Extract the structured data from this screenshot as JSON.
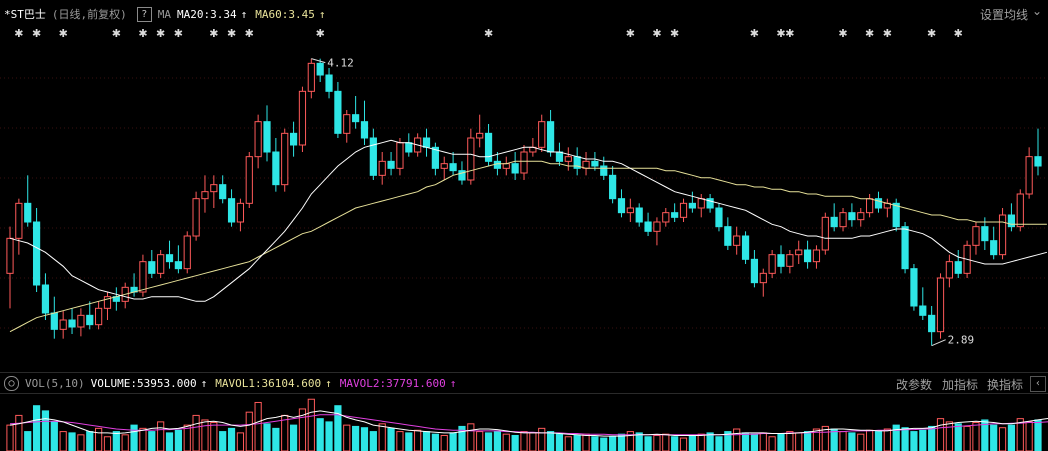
{
  "header": {
    "stock_name": "*ST巴士",
    "period": "(日线,前复权)",
    "help_label": "?",
    "ma_label": "MA",
    "ma20": "MA20:3.34",
    "ma60": "MA60:3.45",
    "arrow": "↑",
    "settings": "设置均线",
    "settings_arrow": "⌄"
  },
  "volume_header": {
    "toggle": "○",
    "name": "VOL(5,10)",
    "volume": "VOLUME:53953.000",
    "mavol1": "MAVOL1:36104.600",
    "mavol2": "MAVOL2:37791.600",
    "arrow": "↑",
    "change_params": "改参数",
    "add_indicator": "加指标",
    "switch_indicator": "换指标",
    "scroll": "‹"
  },
  "annotations": {
    "high": "4.12",
    "low": "2.89",
    "marker": "✱"
  },
  "colors": {
    "up": "#ff5a5a",
    "down": "#2ee6e6",
    "ma20": "#ffffff",
    "ma60": "#e8e29a",
    "mavol1": "#ffffff",
    "mavol2": "#e040e0",
    "grid": "#3a1010"
  },
  "chart_data": {
    "type": "candlestick",
    "price_range": [
      2.85,
      4.2
    ],
    "candles": [
      {
        "o": 3.2,
        "h": 3.4,
        "l": 3.05,
        "c": 3.35
      },
      {
        "o": 3.35,
        "h": 3.52,
        "l": 3.28,
        "c": 3.5
      },
      {
        "o": 3.5,
        "h": 3.62,
        "l": 3.4,
        "c": 3.42
      },
      {
        "o": 3.42,
        "h": 3.48,
        "l": 3.12,
        "c": 3.15
      },
      {
        "o": 3.15,
        "h": 3.2,
        "l": 3.0,
        "c": 3.03
      },
      {
        "o": 3.03,
        "h": 3.1,
        "l": 2.92,
        "c": 2.96
      },
      {
        "o": 2.96,
        "h": 3.04,
        "l": 2.92,
        "c": 3.0
      },
      {
        "o": 3.0,
        "h": 3.05,
        "l": 2.94,
        "c": 2.97
      },
      {
        "o": 2.97,
        "h": 3.05,
        "l": 2.93,
        "c": 3.02
      },
      {
        "o": 3.02,
        "h": 3.08,
        "l": 2.96,
        "c": 2.98
      },
      {
        "o": 2.98,
        "h": 3.08,
        "l": 2.96,
        "c": 3.05
      },
      {
        "o": 3.05,
        "h": 3.12,
        "l": 3.0,
        "c": 3.1
      },
      {
        "o": 3.1,
        "h": 3.14,
        "l": 3.04,
        "c": 3.08
      },
      {
        "o": 3.08,
        "h": 3.16,
        "l": 3.05,
        "c": 3.14
      },
      {
        "o": 3.14,
        "h": 3.2,
        "l": 3.1,
        "c": 3.12
      },
      {
        "o": 3.12,
        "h": 3.28,
        "l": 3.1,
        "c": 3.25
      },
      {
        "o": 3.25,
        "h": 3.3,
        "l": 3.18,
        "c": 3.2
      },
      {
        "o": 3.2,
        "h": 3.3,
        "l": 3.18,
        "c": 3.28
      },
      {
        "o": 3.28,
        "h": 3.34,
        "l": 3.22,
        "c": 3.25
      },
      {
        "o": 3.25,
        "h": 3.32,
        "l": 3.2,
        "c": 3.22
      },
      {
        "o": 3.22,
        "h": 3.38,
        "l": 3.2,
        "c": 3.36
      },
      {
        "o": 3.36,
        "h": 3.55,
        "l": 3.34,
        "c": 3.52
      },
      {
        "o": 3.52,
        "h": 3.62,
        "l": 3.46,
        "c": 3.55
      },
      {
        "o": 3.55,
        "h": 3.62,
        "l": 3.48,
        "c": 3.58
      },
      {
        "o": 3.58,
        "h": 3.62,
        "l": 3.5,
        "c": 3.52
      },
      {
        "o": 3.52,
        "h": 3.56,
        "l": 3.4,
        "c": 3.42
      },
      {
        "o": 3.42,
        "h": 3.52,
        "l": 3.38,
        "c": 3.5
      },
      {
        "o": 3.5,
        "h": 3.72,
        "l": 3.48,
        "c": 3.7
      },
      {
        "o": 3.7,
        "h": 3.88,
        "l": 3.65,
        "c": 3.85
      },
      {
        "o": 3.85,
        "h": 3.92,
        "l": 3.68,
        "c": 3.72
      },
      {
        "o": 3.72,
        "h": 3.78,
        "l": 3.55,
        "c": 3.58
      },
      {
        "o": 3.58,
        "h": 3.82,
        "l": 3.55,
        "c": 3.8
      },
      {
        "o": 3.8,
        "h": 3.85,
        "l": 3.7,
        "c": 3.75
      },
      {
        "o": 3.75,
        "h": 4.0,
        "l": 3.72,
        "c": 3.98
      },
      {
        "o": 3.98,
        "h": 4.12,
        "l": 3.95,
        "c": 4.1
      },
      {
        "o": 4.1,
        "h": 4.12,
        "l": 4.02,
        "c": 4.05
      },
      {
        "o": 4.05,
        "h": 4.08,
        "l": 3.95,
        "c": 3.98
      },
      {
        "o": 3.98,
        "h": 4.02,
        "l": 3.78,
        "c": 3.8
      },
      {
        "o": 3.8,
        "h": 3.9,
        "l": 3.76,
        "c": 3.88
      },
      {
        "o": 3.88,
        "h": 3.96,
        "l": 3.82,
        "c": 3.85
      },
      {
        "o": 3.85,
        "h": 3.94,
        "l": 3.75,
        "c": 3.78
      },
      {
        "o": 3.78,
        "h": 3.82,
        "l": 3.6,
        "c": 3.62
      },
      {
        "o": 3.62,
        "h": 3.72,
        "l": 3.58,
        "c": 3.68
      },
      {
        "o": 3.68,
        "h": 3.72,
        "l": 3.62,
        "c": 3.65
      },
      {
        "o": 3.65,
        "h": 3.78,
        "l": 3.62,
        "c": 3.76
      },
      {
        "o": 3.76,
        "h": 3.8,
        "l": 3.7,
        "c": 3.72
      },
      {
        "o": 3.72,
        "h": 3.8,
        "l": 3.7,
        "c": 3.78
      },
      {
        "o": 3.78,
        "h": 3.82,
        "l": 3.7,
        "c": 3.74
      },
      {
        "o": 3.74,
        "h": 3.76,
        "l": 3.62,
        "c": 3.65
      },
      {
        "o": 3.65,
        "h": 3.7,
        "l": 3.6,
        "c": 3.67
      },
      {
        "o": 3.67,
        "h": 3.72,
        "l": 3.62,
        "c": 3.64
      },
      {
        "o": 3.64,
        "h": 3.68,
        "l": 3.58,
        "c": 3.6
      },
      {
        "o": 3.6,
        "h": 3.82,
        "l": 3.58,
        "c": 3.78
      },
      {
        "o": 3.78,
        "h": 3.88,
        "l": 3.74,
        "c": 3.8
      },
      {
        "o": 3.8,
        "h": 3.84,
        "l": 3.66,
        "c": 3.68
      },
      {
        "o": 3.68,
        "h": 3.72,
        "l": 3.62,
        "c": 3.65
      },
      {
        "o": 3.65,
        "h": 3.7,
        "l": 3.62,
        "c": 3.67
      },
      {
        "o": 3.67,
        "h": 3.72,
        "l": 3.6,
        "c": 3.63
      },
      {
        "o": 3.63,
        "h": 3.75,
        "l": 3.6,
        "c": 3.72
      },
      {
        "o": 3.72,
        "h": 3.78,
        "l": 3.7,
        "c": 3.74
      },
      {
        "o": 3.74,
        "h": 3.88,
        "l": 3.72,
        "c": 3.85
      },
      {
        "o": 3.85,
        "h": 3.9,
        "l": 3.7,
        "c": 3.72
      },
      {
        "o": 3.72,
        "h": 3.76,
        "l": 3.66,
        "c": 3.68
      },
      {
        "o": 3.68,
        "h": 3.74,
        "l": 3.64,
        "c": 3.7
      },
      {
        "o": 3.7,
        "h": 3.74,
        "l": 3.62,
        "c": 3.65
      },
      {
        "o": 3.65,
        "h": 3.72,
        "l": 3.62,
        "c": 3.68
      },
      {
        "o": 3.68,
        "h": 3.72,
        "l": 3.64,
        "c": 3.66
      },
      {
        "o": 3.66,
        "h": 3.7,
        "l": 3.6,
        "c": 3.62
      },
      {
        "o": 3.62,
        "h": 3.66,
        "l": 3.5,
        "c": 3.52
      },
      {
        "o": 3.52,
        "h": 3.56,
        "l": 3.44,
        "c": 3.46
      },
      {
        "o": 3.46,
        "h": 3.52,
        "l": 3.42,
        "c": 3.48
      },
      {
        "o": 3.48,
        "h": 3.5,
        "l": 3.4,
        "c": 3.42
      },
      {
        "o": 3.42,
        "h": 3.46,
        "l": 3.36,
        "c": 3.38
      },
      {
        "o": 3.38,
        "h": 3.44,
        "l": 3.32,
        "c": 3.42
      },
      {
        "o": 3.42,
        "h": 3.48,
        "l": 3.4,
        "c": 3.46
      },
      {
        "o": 3.46,
        "h": 3.5,
        "l": 3.42,
        "c": 3.44
      },
      {
        "o": 3.44,
        "h": 3.52,
        "l": 3.42,
        "c": 3.5
      },
      {
        "o": 3.5,
        "h": 3.55,
        "l": 3.46,
        "c": 3.48
      },
      {
        "o": 3.48,
        "h": 3.54,
        "l": 3.44,
        "c": 3.52
      },
      {
        "o": 3.52,
        "h": 3.54,
        "l": 3.46,
        "c": 3.48
      },
      {
        "o": 3.48,
        "h": 3.5,
        "l": 3.38,
        "c": 3.4
      },
      {
        "o": 3.4,
        "h": 3.44,
        "l": 3.3,
        "c": 3.32
      },
      {
        "o": 3.32,
        "h": 3.4,
        "l": 3.28,
        "c": 3.36
      },
      {
        "o": 3.36,
        "h": 3.38,
        "l": 3.24,
        "c": 3.26
      },
      {
        "o": 3.26,
        "h": 3.3,
        "l": 3.14,
        "c": 3.16
      },
      {
        "o": 3.16,
        "h": 3.22,
        "l": 3.1,
        "c": 3.2
      },
      {
        "o": 3.2,
        "h": 3.3,
        "l": 3.18,
        "c": 3.28
      },
      {
        "o": 3.28,
        "h": 3.32,
        "l": 3.2,
        "c": 3.23
      },
      {
        "o": 3.23,
        "h": 3.3,
        "l": 3.2,
        "c": 3.28
      },
      {
        "o": 3.28,
        "h": 3.34,
        "l": 3.24,
        "c": 3.3
      },
      {
        "o": 3.3,
        "h": 3.34,
        "l": 3.22,
        "c": 3.25
      },
      {
        "o": 3.25,
        "h": 3.32,
        "l": 3.22,
        "c": 3.3
      },
      {
        "o": 3.3,
        "h": 3.46,
        "l": 3.28,
        "c": 3.44
      },
      {
        "o": 3.44,
        "h": 3.5,
        "l": 3.38,
        "c": 3.4
      },
      {
        "o": 3.4,
        "h": 3.48,
        "l": 3.38,
        "c": 3.46
      },
      {
        "o": 3.46,
        "h": 3.5,
        "l": 3.4,
        "c": 3.43
      },
      {
        "o": 3.43,
        "h": 3.48,
        "l": 3.4,
        "c": 3.46
      },
      {
        "o": 3.46,
        "h": 3.54,
        "l": 3.44,
        "c": 3.52
      },
      {
        "o": 3.52,
        "h": 3.55,
        "l": 3.46,
        "c": 3.48
      },
      {
        "o": 3.48,
        "h": 3.52,
        "l": 3.44,
        "c": 3.5
      },
      {
        "o": 3.5,
        "h": 3.52,
        "l": 3.38,
        "c": 3.4
      },
      {
        "o": 3.4,
        "h": 3.42,
        "l": 3.2,
        "c": 3.22
      },
      {
        "o": 3.22,
        "h": 3.24,
        "l": 3.04,
        "c": 3.06
      },
      {
        "o": 3.06,
        "h": 3.14,
        "l": 3.0,
        "c": 3.02
      },
      {
        "o": 3.02,
        "h": 3.06,
        "l": 2.89,
        "c": 2.95
      },
      {
        "o": 2.95,
        "h": 3.2,
        "l": 2.92,
        "c": 3.18
      },
      {
        "o": 3.18,
        "h": 3.28,
        "l": 3.14,
        "c": 3.25
      },
      {
        "o": 3.25,
        "h": 3.3,
        "l": 3.18,
        "c": 3.2
      },
      {
        "o": 3.2,
        "h": 3.34,
        "l": 3.18,
        "c": 3.32
      },
      {
        "o": 3.32,
        "h": 3.42,
        "l": 3.28,
        "c": 3.4
      },
      {
        "o": 3.4,
        "h": 3.44,
        "l": 3.3,
        "c": 3.34
      },
      {
        "o": 3.34,
        "h": 3.4,
        "l": 3.26,
        "c": 3.28
      },
      {
        "o": 3.28,
        "h": 3.48,
        "l": 3.26,
        "c": 3.45
      },
      {
        "o": 3.45,
        "h": 3.5,
        "l": 3.38,
        "c": 3.4
      },
      {
        "o": 3.4,
        "h": 3.56,
        "l": 3.38,
        "c": 3.54
      },
      {
        "o": 3.54,
        "h": 3.74,
        "l": 3.52,
        "c": 3.7
      },
      {
        "o": 3.7,
        "h": 3.82,
        "l": 3.62,
        "c": 3.66
      }
    ],
    "ma20": [
      3.35,
      3.34,
      3.33,
      3.31,
      3.29,
      3.26,
      3.23,
      3.19,
      3.17,
      3.15,
      3.13,
      3.12,
      3.11,
      3.1,
      3.09,
      3.09,
      3.1,
      3.1,
      3.1,
      3.1,
      3.09,
      3.08,
      3.08,
      3.1,
      3.13,
      3.16,
      3.19,
      3.22,
      3.26,
      3.3,
      3.34,
      3.38,
      3.43,
      3.48,
      3.54,
      3.58,
      3.62,
      3.66,
      3.69,
      3.72,
      3.74,
      3.75,
      3.76,
      3.77,
      3.76,
      3.76,
      3.75,
      3.74,
      3.73,
      3.72,
      3.71,
      3.71,
      3.71,
      3.7,
      3.7,
      3.71,
      3.72,
      3.73,
      3.74,
      3.74,
      3.73,
      3.72,
      3.72,
      3.71,
      3.7,
      3.69,
      3.69,
      3.68,
      3.68,
      3.67,
      3.65,
      3.63,
      3.61,
      3.59,
      3.57,
      3.55,
      3.54,
      3.53,
      3.52,
      3.51,
      3.5,
      3.49,
      3.48,
      3.47,
      3.45,
      3.43,
      3.41,
      3.4,
      3.38,
      3.37,
      3.36,
      3.36,
      3.35,
      3.35,
      3.35,
      3.35,
      3.36,
      3.36,
      3.37,
      3.38,
      3.39,
      3.39,
      3.38,
      3.37,
      3.35,
      3.32,
      3.29,
      3.27,
      3.26,
      3.25,
      3.24,
      3.24,
      3.24,
      3.25,
      3.26,
      3.27,
      3.28,
      3.29
    ],
    "ma60": [
      2.95,
      2.97,
      2.99,
      3.01,
      3.02,
      3.03,
      3.04,
      3.05,
      3.06,
      3.07,
      3.08,
      3.09,
      3.1,
      3.11,
      3.12,
      3.13,
      3.14,
      3.15,
      3.16,
      3.17,
      3.18,
      3.19,
      3.2,
      3.21,
      3.22,
      3.23,
      3.24,
      3.25,
      3.27,
      3.29,
      3.31,
      3.33,
      3.35,
      3.37,
      3.38,
      3.4,
      3.42,
      3.44,
      3.46,
      3.48,
      3.49,
      3.5,
      3.51,
      3.52,
      3.53,
      3.54,
      3.55,
      3.57,
      3.58,
      3.6,
      3.62,
      3.63,
      3.64,
      3.65,
      3.66,
      3.67,
      3.67,
      3.68,
      3.68,
      3.68,
      3.68,
      3.67,
      3.67,
      3.66,
      3.66,
      3.65,
      3.65,
      3.65,
      3.65,
      3.65,
      3.65,
      3.65,
      3.65,
      3.65,
      3.64,
      3.64,
      3.63,
      3.62,
      3.61,
      3.61,
      3.6,
      3.59,
      3.58,
      3.58,
      3.57,
      3.57,
      3.56,
      3.56,
      3.55,
      3.55,
      3.54,
      3.54,
      3.53,
      3.53,
      3.53,
      3.53,
      3.52,
      3.52,
      3.51,
      3.5,
      3.49,
      3.48,
      3.47,
      3.46,
      3.45,
      3.45,
      3.44,
      3.43,
      3.43,
      3.42,
      3.42,
      3.42,
      3.42,
      3.41,
      3.41,
      3.41,
      3.41,
      3.41
    ],
    "volume": [
      40,
      55,
      30,
      70,
      62,
      45,
      30,
      28,
      25,
      30,
      35,
      22,
      30,
      25,
      40,
      35,
      30,
      45,
      28,
      32,
      40,
      55,
      48,
      44,
      30,
      35,
      28,
      60,
      75,
      42,
      35,
      55,
      40,
      65,
      80,
      50,
      45,
      70,
      40,
      38,
      36,
      30,
      42,
      35,
      30,
      28,
      32,
      30,
      26,
      24,
      28,
      38,
      42,
      30,
      28,
      30,
      26,
      24,
      30,
      28,
      35,
      30,
      26,
      22,
      24,
      26,
      22,
      20,
      22,
      26,
      30,
      28,
      22,
      24,
      26,
      22,
      20,
      24,
      26,
      28,
      22,
      30,
      34,
      28,
      26,
      28,
      22,
      26,
      30,
      28,
      30,
      34,
      38,
      34,
      30,
      28,
      26,
      32,
      30,
      34,
      40,
      36,
      30,
      32,
      38,
      50,
      45,
      42,
      38,
      44,
      48,
      40,
      36,
      40,
      50,
      45,
      48,
      55,
      52,
      50
    ],
    "mavol1": [
      40,
      42,
      45,
      48,
      50,
      48,
      45,
      40,
      35,
      30,
      28,
      28,
      27,
      28,
      30,
      32,
      35,
      36,
      34,
      35,
      38,
      42,
      45,
      46,
      44,
      40,
      38,
      40,
      45,
      50,
      52,
      55,
      52,
      55,
      60,
      62,
      60,
      58,
      52,
      48,
      45,
      40,
      38,
      36,
      34,
      32,
      31,
      30,
      29,
      28,
      28,
      30,
      32,
      34,
      34,
      33,
      31,
      29,
      28,
      28,
      28,
      28,
      27,
      26,
      25,
      24,
      24,
      23,
      23,
      23,
      24,
      25,
      25,
      26,
      25,
      24,
      24,
      24,
      24,
      25,
      25,
      26,
      27,
      28,
      28,
      28,
      27,
      27,
      27,
      28,
      29,
      31,
      33,
      34,
      34,
      33,
      32,
      32,
      31,
      31,
      33,
      34,
      35,
      35,
      36,
      40,
      42,
      44,
      45,
      46,
      45,
      44,
      42,
      42,
      44,
      46,
      48,
      50,
      51,
      52
    ],
    "mavol2": [
      42,
      43,
      44,
      45,
      46,
      46,
      45,
      44,
      42,
      40,
      38,
      36,
      34,
      33,
      32,
      32,
      32,
      33,
      33,
      34,
      35,
      37,
      39,
      40,
      40,
      40,
      40,
      41,
      42,
      44,
      46,
      48,
      50,
      52,
      54,
      56,
      56,
      56,
      54,
      52,
      50,
      48,
      46,
      44,
      42,
      40,
      38,
      36,
      34,
      33,
      32,
      32,
      31,
      31,
      31,
      31,
      30,
      30,
      29,
      29,
      28,
      28,
      28,
      27,
      27,
      26,
      26,
      26,
      25,
      25,
      25,
      25,
      25,
      25,
      25,
      25,
      25,
      25,
      25,
      25,
      25,
      25,
      25,
      26,
      26,
      27,
      27,
      27,
      28,
      28,
      28,
      29,
      29,
      30,
      30,
      31,
      31,
      31,
      32,
      32,
      32,
      33,
      33,
      34,
      34,
      36,
      37,
      38,
      39,
      40,
      41,
      42,
      42,
      43,
      43,
      44,
      44,
      45,
      46,
      47
    ]
  }
}
